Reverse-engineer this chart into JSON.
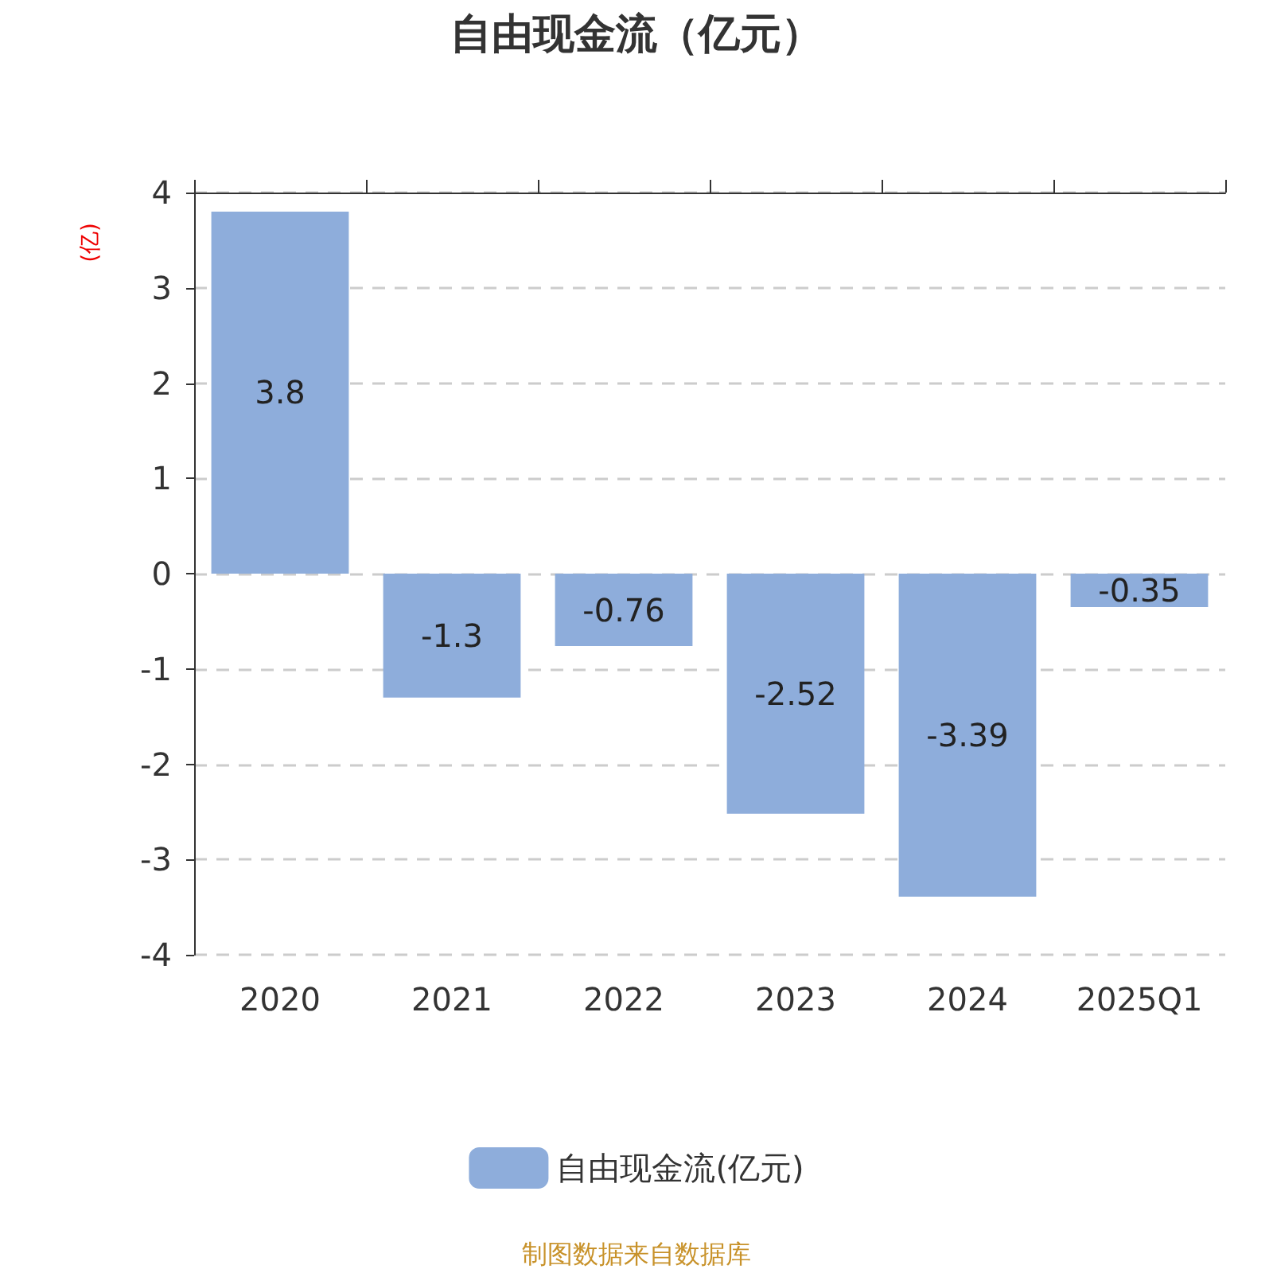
{
  "chart_data": {
    "type": "bar",
    "title": "自由现金流（亿元）",
    "ylabel": "(亿)",
    "categories": [
      "2020",
      "2021",
      "2022",
      "2023",
      "2024",
      "2025Q1"
    ],
    "series": [
      {
        "name": "自由现金流(亿元)",
        "color": "#8eaddb",
        "values": [
          3.8,
          -1.3,
          -0.76,
          -2.52,
          -3.39,
          -0.35
        ]
      }
    ],
    "ylim": [
      -4,
      4
    ],
    "yticks": [
      -4,
      -3,
      -2,
      -1,
      0,
      1,
      2,
      3,
      4
    ],
    "grid": "y",
    "legend": "bottom",
    "data_labels": true,
    "annotations": [
      "制图数据来自数据库"
    ]
  }
}
